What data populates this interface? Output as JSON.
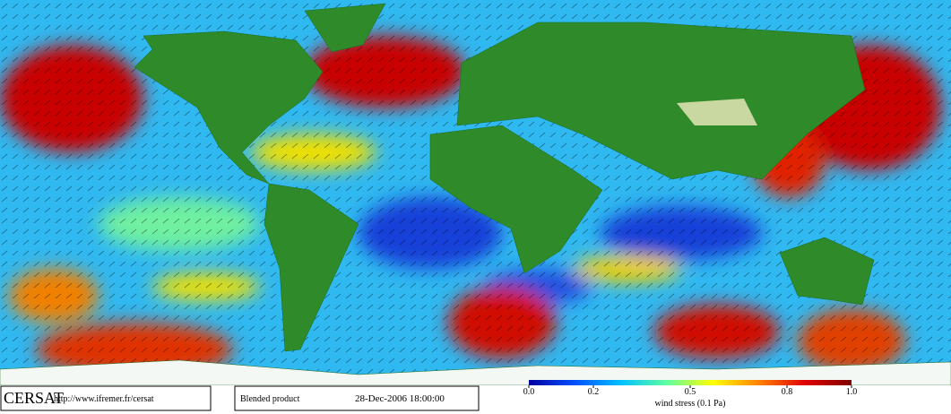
{
  "footer": {
    "logo": "CERSAT",
    "url": "http://www.ifremer.fr/cersat",
    "product": "Blended product",
    "date": "28-Dec-2006 18:00:00"
  },
  "colorbar": {
    "label": "wind stress (0.1 Pa)",
    "lim": [
      0,
      1
    ],
    "ticks": [
      {
        "value": 0,
        "label": "0.0"
      },
      0.2,
      0.5,
      0.8,
      {
        "value": 1,
        "label": "1.0"
      }
    ],
    "colors": [
      "#0000a0",
      "#0050ff",
      "#00c0ff",
      "#60ffa0",
      "#ffff00",
      "#ff8000",
      "#e00000",
      "#800000"
    ]
  }
}
